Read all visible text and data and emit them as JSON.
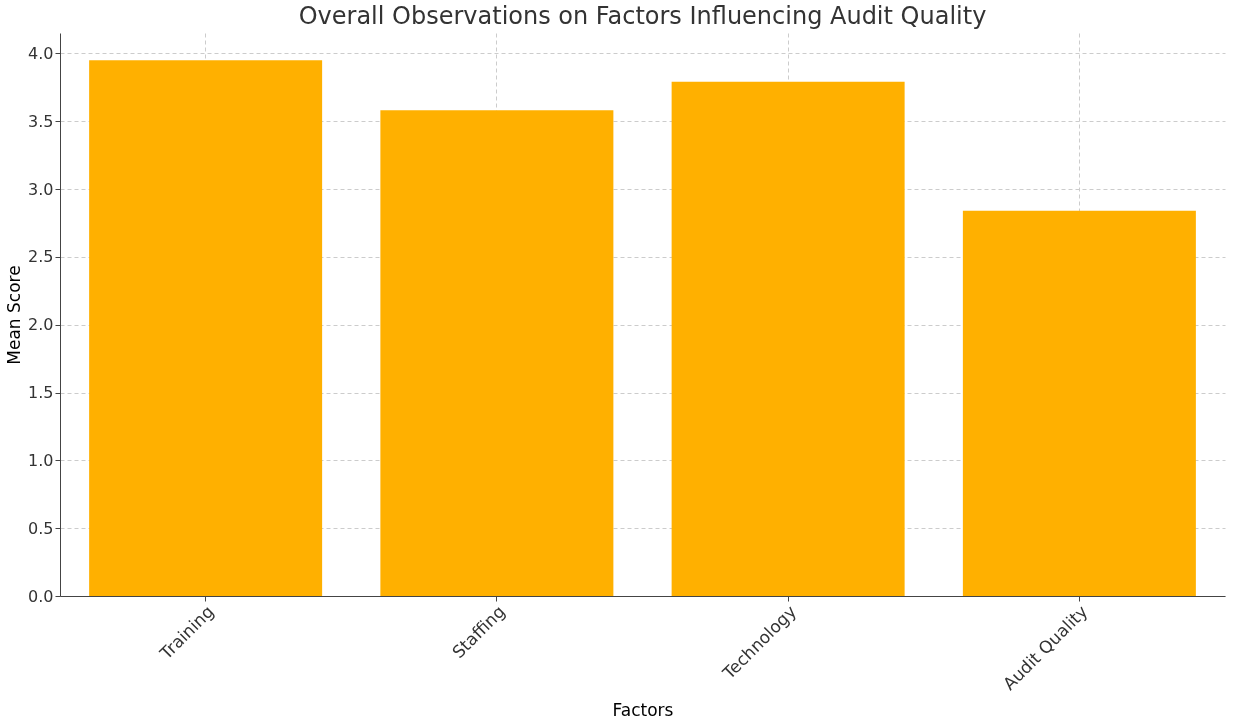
{
  "chart_data": {
    "type": "bar",
    "title": "Overall Observations on Factors Influencing Audit Quality",
    "xlabel": "Factors",
    "ylabel": "Mean Score",
    "categories": [
      "Training",
      "Staffing",
      "Technology",
      "Audit Quality"
    ],
    "values": [
      3.95,
      3.58,
      3.79,
      2.84
    ],
    "color": "#ffb000",
    "ylim": [
      0,
      4.15
    ],
    "yticks": [
      {
        "value": 0,
        "label": "0.0"
      },
      0.5,
      {
        "value": 1,
        "label": "1.0"
      },
      1.5,
      {
        "value": 2,
        "label": "2.0"
      },
      2.5,
      {
        "value": 3,
        "label": "3.0"
      },
      3.5,
      {
        "value": 4,
        "label": "4.0"
      }
    ],
    "grid": true
  }
}
